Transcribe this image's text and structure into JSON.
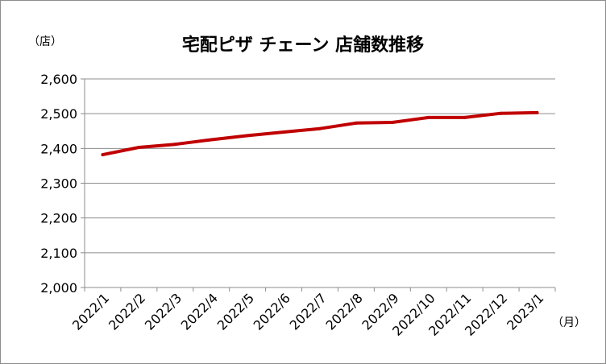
{
  "chart_data": {
    "type": "line",
    "title": "宅配ピザ チェーン 店舗数推移",
    "ylabel": "（店）",
    "xlabel": "（月）",
    "ylim": [
      2000,
      2600
    ],
    "yticks": [
      2000,
      2100,
      2200,
      2300,
      2400,
      2500,
      2600
    ],
    "ytick_labels": [
      "2,000",
      "2,100",
      "2,200",
      "2,300",
      "2,400",
      "2,500",
      "2,600"
    ],
    "categories": [
      "2022/1",
      "2022/2",
      "2022/3",
      "2022/4",
      "2022/5",
      "2022/6",
      "2022/7",
      "2022/8",
      "2022/9",
      "2022/10",
      "2022/11",
      "2022/12",
      "2023/1"
    ],
    "series": [
      {
        "values": [
          2382,
          2403,
          2412,
          2425,
          2437,
          2447,
          2457,
          2473,
          2475,
          2489,
          2489,
          2501,
          2503
        ],
        "color": "#c00000"
      }
    ],
    "grid": true,
    "legend": "none"
  }
}
